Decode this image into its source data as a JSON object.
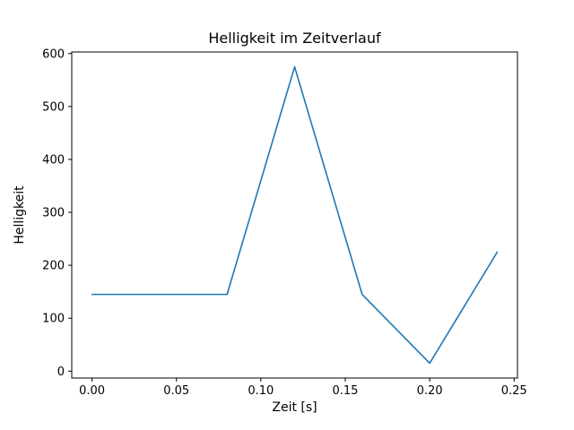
{
  "chart_data": {
    "type": "line",
    "title": "Helligkeit im Zeitverlauf",
    "xlabel": "Zeit [s]",
    "ylabel": "Helligkeit",
    "x": [
      0.0,
      0.04,
      0.08,
      0.12,
      0.16,
      0.2,
      0.24
    ],
    "y": [
      145,
      145,
      145,
      575,
      145,
      15,
      225
    ],
    "xlim": [
      -0.012,
      0.252
    ],
    "ylim": [
      -13,
      603
    ],
    "xticks": {
      "values": [
        0.0,
        0.05,
        0.1,
        0.15,
        0.2,
        0.25
      ],
      "labels": [
        "0.00",
        "0.05",
        "0.10",
        "0.15",
        "0.20",
        "0.25"
      ]
    },
    "yticks": {
      "values": [
        0,
        100,
        200,
        300,
        400,
        500,
        600
      ],
      "labels": [
        "0",
        "100",
        "200",
        "300",
        "400",
        "500",
        "600"
      ]
    },
    "line_color": "#1f77b4",
    "spine_color": "#000000",
    "grid": false,
    "legend_position": "none"
  }
}
